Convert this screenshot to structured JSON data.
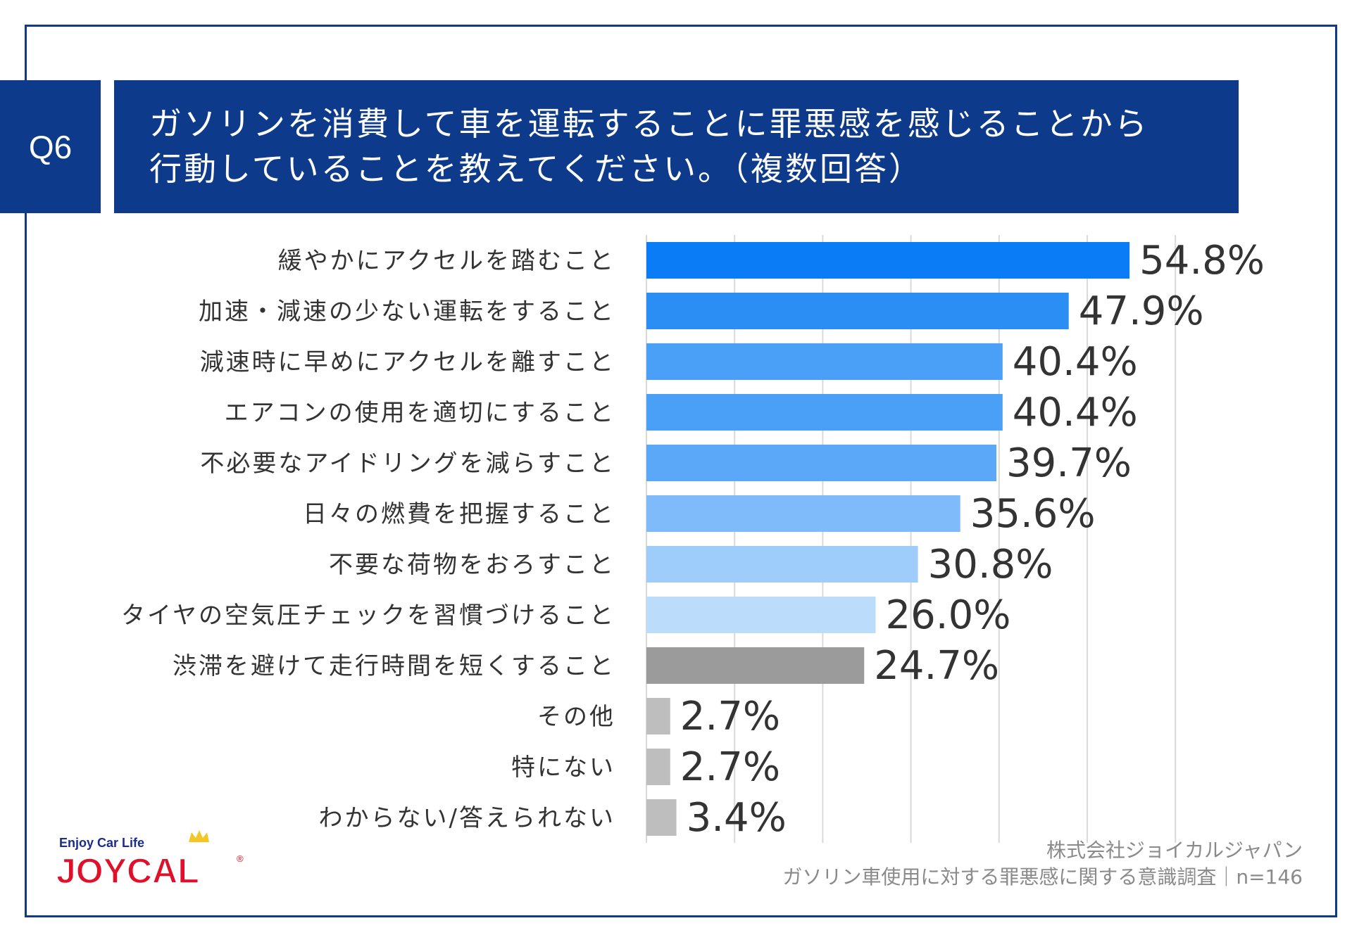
{
  "question": {
    "badge": "Q6",
    "line1": "ガソリンを消費して車を運転することに罪悪感を感じることから",
    "line2": "行動していることを教えてください。（複数回答）"
  },
  "chart_data": {
    "type": "bar",
    "orientation": "horizontal",
    "categories": [
      "緩やかにアクセルを踏むこと",
      "加速・減速の少ない運転をすること",
      "減速時に早めにアクセルを離すこと",
      "エアコンの使用を適切にすること",
      "不必要なアイドリングを減らすこと",
      "日々の燃費を把握すること",
      "不要な荷物をおろすこと",
      "タイヤの空気圧チェックを習慣づけること",
      "渋滞を避けて走行時間を短くすること",
      "その他",
      "特にない",
      "わからない/答えられない"
    ],
    "values": [
      54.8,
      47.9,
      40.4,
      40.4,
      39.7,
      35.6,
      30.8,
      26.0,
      24.7,
      2.7,
      2.7,
      3.4
    ],
    "value_labels": [
      "54.8%",
      "47.9%",
      "40.4%",
      "40.4%",
      "39.7%",
      "35.6%",
      "30.8%",
      "26.0%",
      "24.7%",
      "2.7%",
      "2.7%",
      "3.4%"
    ],
    "colors": [
      "#0a7cf5",
      "#2b8ef5",
      "#4aa0f7",
      "#4aa0f7",
      "#5aa8f7",
      "#7fbbfa",
      "#9fcdfb",
      "#bcdcfc",
      "#9b9b9b",
      "#bebebe",
      "#bebebe",
      "#bebebe"
    ],
    "xlim": [
      0,
      60
    ],
    "grid": true
  },
  "source": {
    "company": "株式会社ジョイカルジャパン",
    "survey": "ガソリン車使用に対する罪悪感に関する意識調査｜n=146"
  },
  "logo": {
    "tagline": "Enjoy Car Life",
    "brand": "JOYCAL",
    "registered": "®"
  }
}
